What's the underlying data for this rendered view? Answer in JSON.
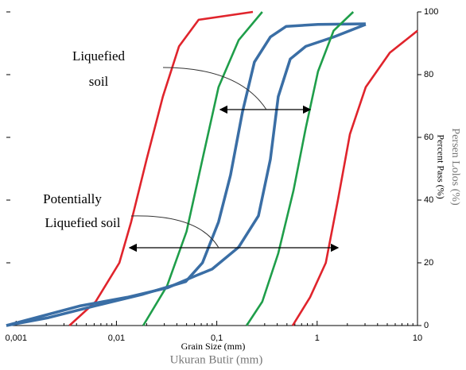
{
  "chart_data": {
    "type": "line",
    "xlabel": "Grain Size (mm)",
    "xlabel_alt": "Ukuran Butir (mm)",
    "ylabel": "Percent Pass (%)",
    "ylabel_alt": "Persen Lolos (%)",
    "log_x": true,
    "xlim": [
      0.0008,
      10
    ],
    "ylim": [
      0,
      100
    ],
    "xticks": [
      {
        "value": 0.001,
        "label": "0,001"
      },
      {
        "value": 0.01,
        "label": "0,01"
      },
      {
        "value": 0.1,
        "label": "0,1"
      },
      1,
      10
    ],
    "yticks": [
      0,
      20,
      40,
      60,
      80,
      100
    ],
    "annotations": [
      {
        "lines": [
          "Liquefied",
          "soil"
        ]
      },
      {
        "lines": [
          "Potentially",
          "Liquefied soil"
        ]
      }
    ],
    "series": [
      {
        "color": "#e0242c",
        "x": [
          0.0034,
          0.0062,
          0.0107,
          0.014,
          0.02,
          0.029,
          0.042,
          0.066,
          0.229
        ],
        "values": [
          0,
          7.6,
          20,
          33,
          53,
          73,
          89,
          97.5,
          100
        ]
      },
      {
        "color": "#1f9e4a",
        "x": [
          0.0185,
          0.032,
          0.05,
          0.072,
          0.104,
          0.165,
          0.284
        ],
        "values": [
          0,
          12.7,
          30,
          53,
          76,
          91,
          100
        ]
      },
      {
        "color": "#3a6ea5",
        "x": [
          0.0008,
          0.0021,
          0.0062,
          0.0185,
          0.049,
          0.072,
          0.104,
          0.137,
          0.18,
          0.237,
          0.342,
          0.492,
          1.02,
          3.05
        ],
        "values": [
          0,
          2.5,
          6.3,
          10,
          14,
          20,
          33,
          48,
          68,
          84,
          92,
          95.4,
          96,
          96.2
        ]
      },
      {
        "color": "#3a6ea5",
        "x": [
          0.0008,
          0.0044,
          0.0128,
          0.032,
          0.063,
          0.09,
          0.165,
          0.26,
          0.342,
          0.41,
          0.54,
          0.77,
          1.46,
          3.05
        ],
        "values": [
          0,
          6.3,
          9,
          12,
          16,
          18,
          25,
          35,
          53,
          73,
          85,
          89,
          92,
          96
        ]
      },
      {
        "color": "#1f9e4a",
        "x": [
          0.198,
          0.284,
          0.41,
          0.58,
          0.77,
          1.02,
          1.46,
          2.29
        ],
        "values": [
          0,
          7.6,
          23,
          43,
          63,
          81,
          94,
          100
        ]
      },
      {
        "color": "#e0242c",
        "x": [
          0.57,
          0.85,
          1.22,
          1.61,
          2.12,
          3.05,
          5.3,
          10
        ],
        "values": [
          0,
          9,
          20,
          40,
          61,
          76,
          87,
          94
        ]
      }
    ]
  }
}
